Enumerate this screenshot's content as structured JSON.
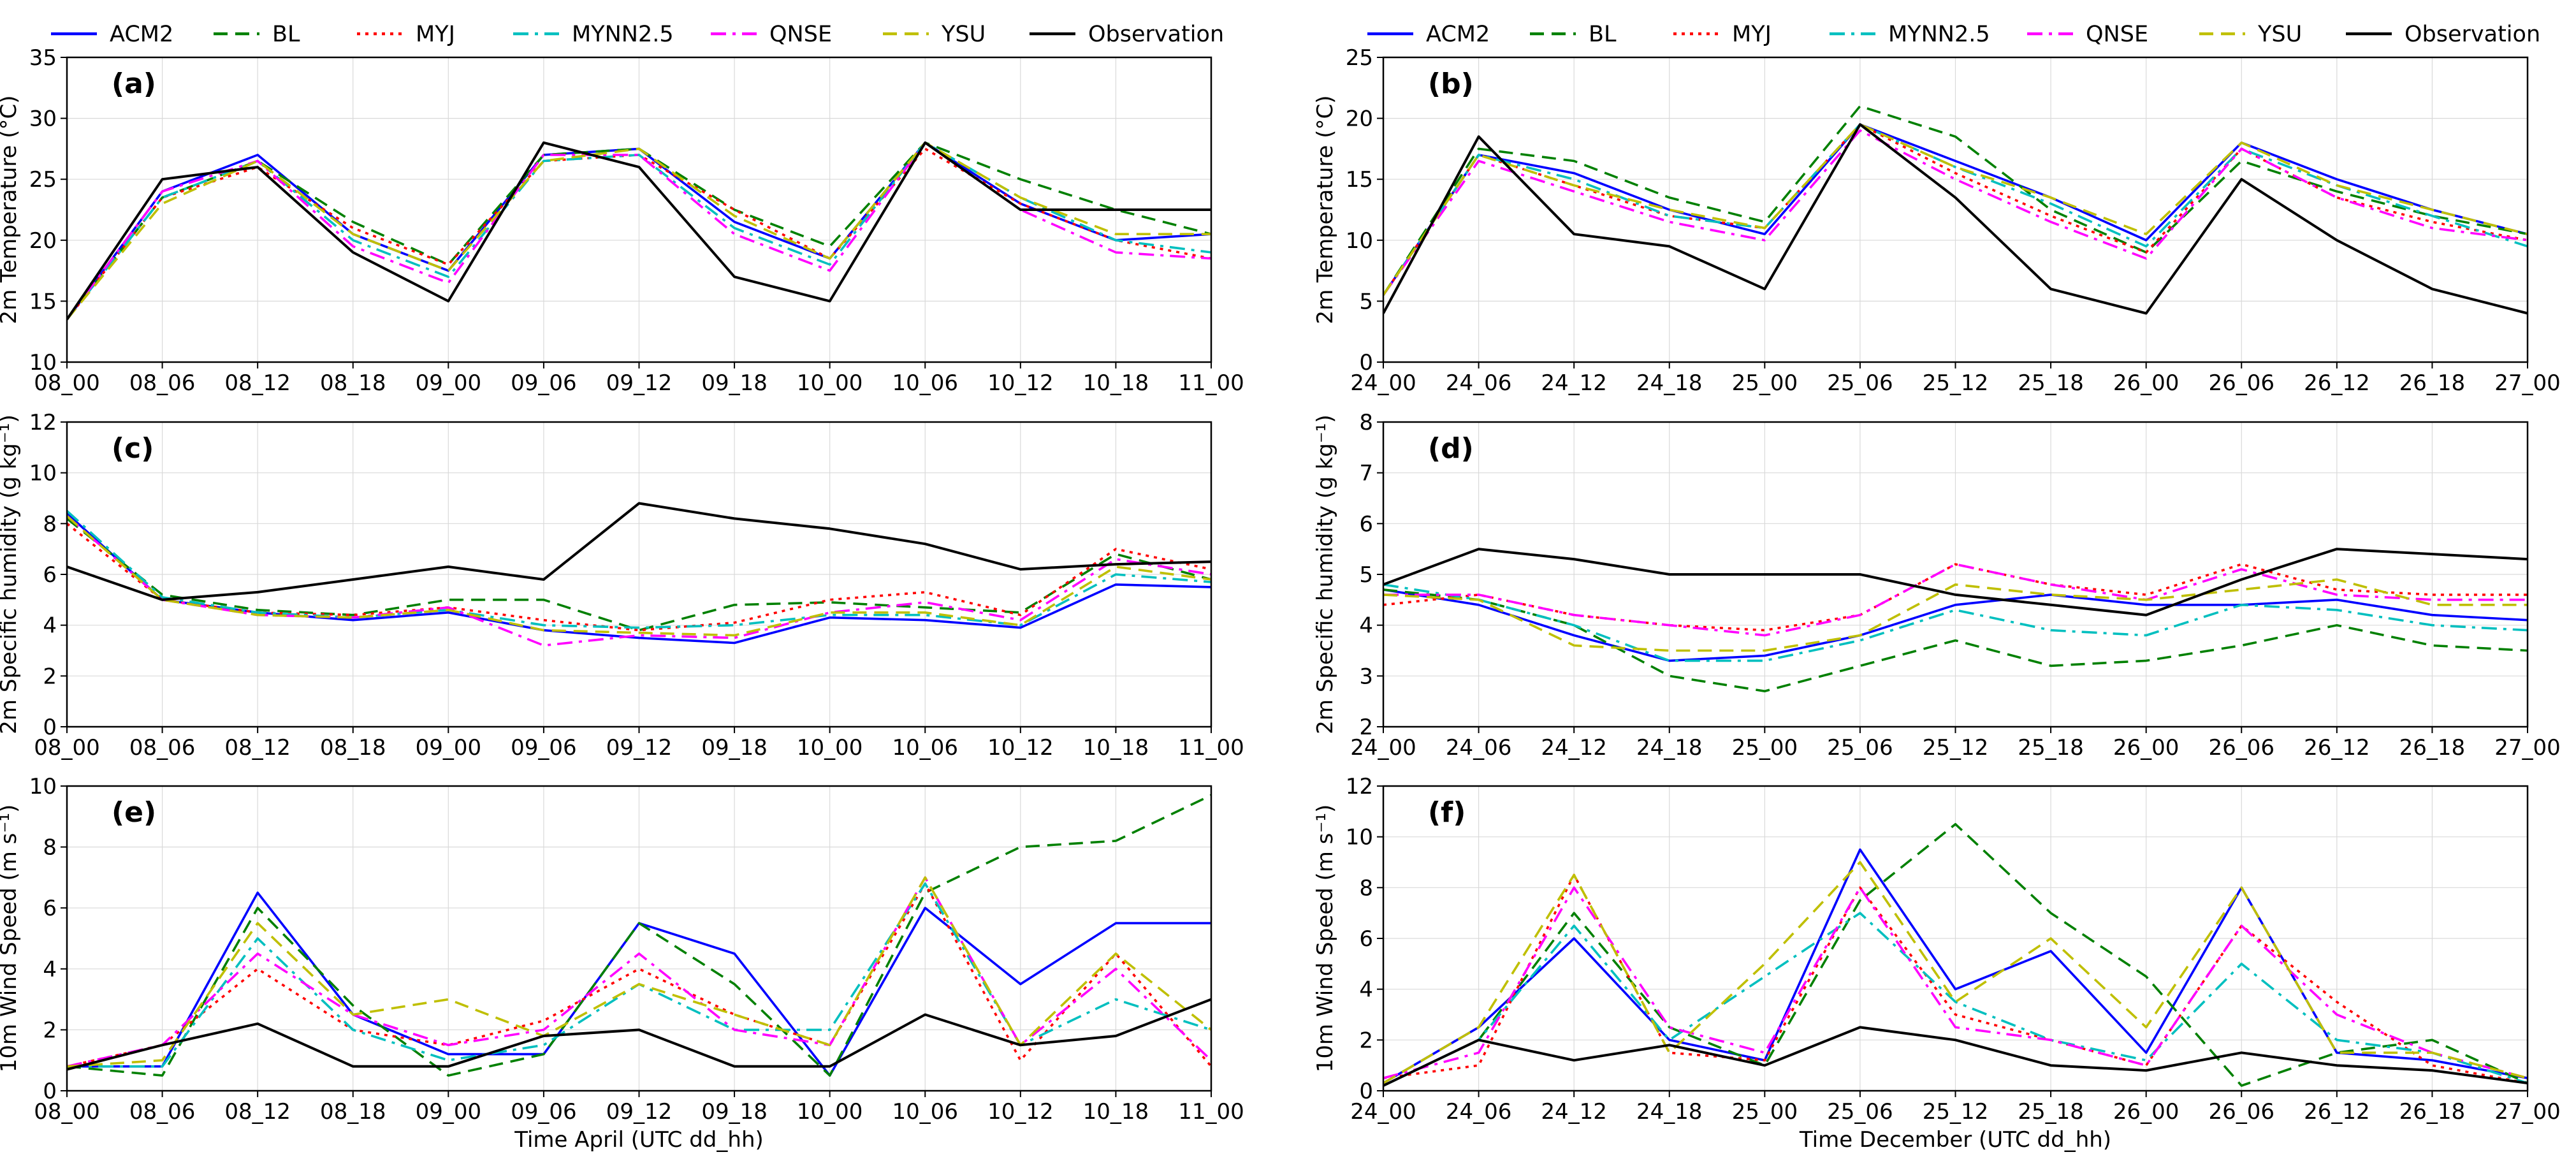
{
  "legend": [
    {
      "name": "ACM2",
      "color": "#0000ff",
      "dash": "solid"
    },
    {
      "name": "BL",
      "color": "#008000",
      "dash": "dashed"
    },
    {
      "name": "MYJ",
      "color": "#ff0000",
      "dash": "dotted"
    },
    {
      "name": "MYNN2.5",
      "color": "#00bfbf",
      "dash": "dashdot"
    },
    {
      "name": "QNSE",
      "color": "#ff00ff",
      "dash": "dashdot"
    },
    {
      "name": "YSU",
      "color": "#bfbf00",
      "dash": "dashed"
    },
    {
      "name": "Observation",
      "color": "#000000",
      "dash": "solid"
    }
  ],
  "columns": {
    "left": {
      "xlabel": "Time April (UTC dd_hh)",
      "xticks": [
        "08_00",
        "08_06",
        "08_12",
        "08_18",
        "09_00",
        "09_06",
        "09_12",
        "09_18",
        "10_00",
        "10_06",
        "10_12",
        "10_18",
        "11_00"
      ]
    },
    "right": {
      "xlabel": "Time December (UTC dd_hh)",
      "xticks": [
        "24_00",
        "24_06",
        "24_12",
        "24_18",
        "25_00",
        "25_06",
        "25_12",
        "25_18",
        "26_00",
        "26_06",
        "26_12",
        "26_18",
        "27_00"
      ]
    }
  },
  "chart_data": [
    {
      "panel": "(a)",
      "type": "line",
      "column": "left",
      "row": 0,
      "ylabel": "2m Temperature (°C)",
      "ylim": [
        10,
        35
      ],
      "yticks": [
        "10",
        "15",
        "20",
        "25",
        "30",
        "35"
      ],
      "x": [
        0,
        6,
        12,
        18,
        24,
        30,
        36,
        42,
        48,
        54,
        60,
        66,
        72
      ],
      "series": [
        {
          "name": "ACM2",
          "values": [
            13.5,
            24.0,
            27.0,
            20.5,
            17.5,
            27.0,
            27.5,
            21.5,
            18.5,
            28.0,
            23.0,
            20.0,
            20.5
          ]
        },
        {
          "name": "BL",
          "values": [
            13.5,
            23.5,
            26.5,
            21.5,
            18.0,
            27.0,
            27.5,
            22.5,
            19.5,
            28.0,
            25.0,
            22.5,
            20.5
          ]
        },
        {
          "name": "MYJ",
          "values": [
            13.5,
            23.5,
            26.0,
            21.0,
            18.0,
            26.5,
            27.0,
            22.5,
            18.5,
            27.5,
            23.0,
            20.0,
            18.5
          ]
        },
        {
          "name": "MYNN2.5",
          "values": [
            13.5,
            23.5,
            26.5,
            20.0,
            17.0,
            26.5,
            27.0,
            21.0,
            18.0,
            28.0,
            23.5,
            20.0,
            19.0
          ]
        },
        {
          "name": "QNSE",
          "values": [
            13.5,
            24.0,
            26.5,
            19.5,
            16.5,
            27.0,
            27.0,
            20.5,
            17.5,
            28.0,
            22.5,
            19.0,
            18.5
          ]
        },
        {
          "name": "YSU",
          "values": [
            13.5,
            23.0,
            26.5,
            20.5,
            17.5,
            26.5,
            27.5,
            22.0,
            18.5,
            28.0,
            23.5,
            20.5,
            20.5
          ]
        },
        {
          "name": "Observation",
          "values": [
            13.5,
            25.0,
            26.0,
            19.0,
            15.0,
            28.0,
            26.0,
            17.0,
            15.0,
            28.0,
            22.5,
            22.5,
            22.5
          ]
        }
      ]
    },
    {
      "panel": "(b)",
      "type": "line",
      "column": "right",
      "row": 0,
      "ylabel": "2m Temperature (°C)",
      "ylim": [
        0,
        25
      ],
      "yticks": [
        "0",
        "5",
        "10",
        "15",
        "20",
        "25"
      ],
      "x": [
        0,
        6,
        12,
        18,
        24,
        30,
        36,
        42,
        48,
        54,
        60,
        66,
        72
      ],
      "series": [
        {
          "name": "ACM2",
          "values": [
            5.5,
            17.0,
            15.5,
            12.5,
            10.5,
            19.5,
            16.5,
            13.5,
            10.0,
            18.0,
            15.0,
            12.5,
            10.5
          ]
        },
        {
          "name": "BL",
          "values": [
            5.5,
            17.5,
            16.5,
            13.5,
            11.5,
            21.0,
            18.5,
            12.5,
            9.0,
            16.5,
            14.0,
            12.0,
            10.5
          ]
        },
        {
          "name": "MYJ",
          "values": [
            5.5,
            17.0,
            14.5,
            12.0,
            11.0,
            19.5,
            15.5,
            12.0,
            9.0,
            17.5,
            13.5,
            11.5,
            10.0
          ]
        },
        {
          "name": "MYNN2.5",
          "values": [
            5.5,
            17.0,
            15.0,
            12.0,
            11.0,
            19.5,
            16.0,
            13.0,
            9.5,
            17.5,
            14.5,
            12.0,
            9.5
          ]
        },
        {
          "name": "QNSE",
          "values": [
            5.5,
            16.5,
            14.0,
            11.5,
            10.0,
            19.0,
            15.0,
            11.5,
            8.5,
            17.5,
            13.5,
            11.0,
            10.0
          ]
        },
        {
          "name": "YSU",
          "values": [
            5.5,
            17.0,
            14.5,
            12.5,
            11.0,
            19.5,
            16.0,
            13.5,
            10.5,
            18.0,
            14.5,
            12.5,
            10.5
          ]
        },
        {
          "name": "Observation",
          "values": [
            4.0,
            18.5,
            10.5,
            9.5,
            6.0,
            19.5,
            13.5,
            6.0,
            4.0,
            15.0,
            10.0,
            6.0,
            4.0
          ]
        }
      ]
    },
    {
      "panel": "(c)",
      "type": "line",
      "column": "left",
      "row": 1,
      "ylabel": "2m Specific humidity (g kg⁻¹)",
      "ylim": [
        0,
        12
      ],
      "yticks": [
        "0",
        "2",
        "4",
        "6",
        "8",
        "10",
        "12"
      ],
      "x": [
        0,
        6,
        12,
        18,
        24,
        30,
        36,
        42,
        48,
        54,
        60,
        66,
        72
      ],
      "series": [
        {
          "name": "ACM2",
          "values": [
            8.4,
            5.0,
            4.5,
            4.2,
            4.5,
            3.8,
            3.5,
            3.3,
            4.3,
            4.2,
            3.9,
            5.6,
            5.5
          ]
        },
        {
          "name": "BL",
          "values": [
            8.2,
            5.2,
            4.6,
            4.4,
            5.0,
            5.0,
            3.8,
            4.8,
            4.9,
            4.7,
            4.5,
            6.8,
            5.8
          ]
        },
        {
          "name": "MYJ",
          "values": [
            8.0,
            5.0,
            4.5,
            4.4,
            4.7,
            4.2,
            3.8,
            4.1,
            5.0,
            5.3,
            4.4,
            7.0,
            6.2
          ]
        },
        {
          "name": "MYNN2.5",
          "values": [
            8.5,
            5.1,
            4.5,
            4.3,
            4.6,
            4.0,
            3.9,
            4.0,
            4.4,
            4.4,
            4.0,
            6.0,
            5.7
          ]
        },
        {
          "name": "QNSE",
          "values": [
            8.3,
            5.0,
            4.4,
            4.3,
            4.7,
            3.2,
            3.6,
            3.5,
            4.5,
            4.9,
            4.2,
            6.6,
            6.0
          ]
        },
        {
          "name": "YSU",
          "values": [
            8.3,
            5.0,
            4.4,
            4.3,
            4.6,
            3.8,
            3.7,
            3.6,
            4.5,
            4.5,
            4.0,
            6.3,
            5.8
          ]
        },
        {
          "name": "Observation",
          "values": [
            6.3,
            5.0,
            5.3,
            5.8,
            6.3,
            5.8,
            8.8,
            8.2,
            7.8,
            7.2,
            6.2,
            6.4,
            6.5
          ]
        }
      ]
    },
    {
      "panel": "(d)",
      "type": "line",
      "column": "right",
      "row": 1,
      "ylabel": "2m Specific humidity (g kg⁻¹)",
      "ylim": [
        2,
        8
      ],
      "yticks": [
        "2",
        "3",
        "4",
        "5",
        "6",
        "7",
        "8"
      ],
      "x": [
        0,
        6,
        12,
        18,
        24,
        30,
        36,
        42,
        48,
        54,
        60,
        66,
        72
      ],
      "series": [
        {
          "name": "ACM2",
          "values": [
            4.7,
            4.4,
            3.8,
            3.3,
            3.4,
            3.8,
            4.4,
            4.6,
            4.4,
            4.4,
            4.5,
            4.2,
            4.1
          ]
        },
        {
          "name": "BL",
          "values": [
            4.7,
            4.5,
            4.0,
            3.0,
            2.7,
            3.2,
            3.7,
            3.2,
            3.3,
            3.6,
            4.0,
            3.6,
            3.5
          ]
        },
        {
          "name": "MYJ",
          "values": [
            4.4,
            4.6,
            4.2,
            4.0,
            3.9,
            4.2,
            5.2,
            4.8,
            4.6,
            5.2,
            4.7,
            4.6,
            4.6
          ]
        },
        {
          "name": "MYNN2.5",
          "values": [
            4.8,
            4.5,
            4.0,
            3.3,
            3.3,
            3.7,
            4.3,
            3.9,
            3.8,
            4.4,
            4.3,
            4.0,
            3.9
          ]
        },
        {
          "name": "QNSE",
          "values": [
            4.6,
            4.6,
            4.2,
            4.0,
            3.8,
            4.2,
            5.2,
            4.8,
            4.5,
            5.1,
            4.6,
            4.5,
            4.5
          ]
        },
        {
          "name": "YSU",
          "values": [
            4.6,
            4.5,
            3.6,
            3.5,
            3.5,
            3.8,
            4.8,
            4.6,
            4.5,
            4.7,
            4.9,
            4.4,
            4.4
          ]
        },
        {
          "name": "Observation",
          "values": [
            4.8,
            5.5,
            5.3,
            5.0,
            5.0,
            5.0,
            4.6,
            4.4,
            4.2,
            4.9,
            5.5,
            5.4,
            5.3
          ]
        }
      ]
    },
    {
      "panel": "(e)",
      "type": "line",
      "column": "left",
      "row": 2,
      "ylabel": "10m Wind Speed (m s⁻¹)",
      "ylim": [
        0,
        10
      ],
      "yticks": [
        "0",
        "2",
        "4",
        "6",
        "8",
        "10"
      ],
      "x": [
        0,
        6,
        12,
        18,
        24,
        30,
        36,
        42,
        48,
        54,
        60,
        66,
        72
      ],
      "series": [
        {
          "name": "ACM2",
          "values": [
            0.8,
            0.8,
            6.5,
            2.5,
            1.2,
            1.2,
            5.5,
            4.5,
            0.5,
            6.0,
            3.5,
            5.5,
            5.5
          ]
        },
        {
          "name": "BL",
          "values": [
            0.8,
            0.5,
            6.0,
            2.8,
            0.5,
            1.2,
            5.5,
            3.5,
            0.5,
            6.5,
            8.0,
            8.2,
            9.7
          ]
        },
        {
          "name": "MYJ",
          "values": [
            0.8,
            1.5,
            4.0,
            2.0,
            1.5,
            2.3,
            4.0,
            2.5,
            1.5,
            6.8,
            1.0,
            4.5,
            0.8
          ]
        },
        {
          "name": "MYNN2.5",
          "values": [
            0.8,
            0.8,
            5.0,
            2.0,
            1.0,
            1.5,
            3.5,
            2.0,
            2.0,
            6.8,
            1.5,
            3.0,
            2.0
          ]
        },
        {
          "name": "QNSE",
          "values": [
            0.8,
            1.5,
            4.5,
            2.5,
            1.5,
            2.0,
            4.5,
            2.0,
            1.5,
            7.0,
            1.5,
            4.0,
            1.0
          ]
        },
        {
          "name": "YSU",
          "values": [
            0.8,
            1.0,
            5.5,
            2.5,
            3.0,
            1.8,
            3.5,
            2.5,
            1.5,
            7.0,
            1.5,
            4.5,
            2.0
          ]
        },
        {
          "name": "Observation",
          "values": [
            0.7,
            1.5,
            2.2,
            0.8,
            0.8,
            1.8,
            2.0,
            0.8,
            0.8,
            2.5,
            1.5,
            1.8,
            3.0
          ]
        }
      ]
    },
    {
      "panel": "(f)",
      "type": "line",
      "column": "right",
      "row": 2,
      "ylabel": "10m Wind Speed (m s⁻¹)",
      "ylim": [
        0,
        12
      ],
      "yticks": [
        "0",
        "2",
        "4",
        "6",
        "8",
        "10",
        "12"
      ],
      "x": [
        0,
        6,
        12,
        18,
        24,
        30,
        36,
        42,
        48,
        54,
        60,
        66,
        72
      ],
      "series": [
        {
          "name": "ACM2",
          "values": [
            0.3,
            2.5,
            6.0,
            2.0,
            1.2,
            9.5,
            4.0,
            5.5,
            1.5,
            8.0,
            1.5,
            1.2,
            0.5
          ]
        },
        {
          "name": "BL",
          "values": [
            0.2,
            2.0,
            7.0,
            2.5,
            1.0,
            7.5,
            10.5,
            7.0,
            4.5,
            0.2,
            1.5,
            2.0,
            0.3
          ]
        },
        {
          "name": "MYJ",
          "values": [
            0.5,
            1.0,
            8.5,
            1.5,
            1.2,
            8.0,
            3.0,
            2.0,
            1.0,
            6.5,
            3.5,
            1.0,
            0.3
          ]
        },
        {
          "name": "MYNN2.5",
          "values": [
            0.2,
            2.0,
            6.5,
            2.0,
            4.5,
            7.0,
            3.5,
            2.0,
            1.2,
            5.0,
            2.0,
            1.5,
            0.3
          ]
        },
        {
          "name": "QNSE",
          "values": [
            0.5,
            1.5,
            8.0,
            2.5,
            1.5,
            8.0,
            2.5,
            2.0,
            1.0,
            6.5,
            3.0,
            1.5,
            0.5
          ]
        },
        {
          "name": "YSU",
          "values": [
            0.3,
            2.5,
            8.5,
            1.5,
            5.0,
            9.0,
            3.5,
            6.0,
            2.5,
            8.0,
            1.5,
            1.5,
            0.5
          ]
        },
        {
          "name": "Observation",
          "values": [
            0.2,
            2.0,
            1.2,
            1.8,
            1.0,
            2.5,
            2.0,
            1.0,
            0.8,
            1.5,
            1.0,
            0.8,
            0.3
          ]
        }
      ]
    }
  ]
}
